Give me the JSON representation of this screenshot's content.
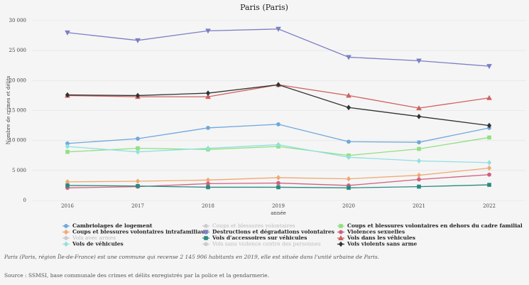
{
  "chart_data": {
    "type": "line",
    "title": "Paris (Paris)",
    "x_label": "année",
    "y_label": "Nombre de crimes et délits",
    "categories": [
      "2016",
      "2017",
      "2018",
      "2019",
      "2020",
      "2021",
      "2022"
    ],
    "ylim": [
      0,
      30000
    ],
    "yticks": [
      0,
      {
        "value": 5000,
        "label": "5 000"
      },
      {
        "value": 10000,
        "label": "10 000"
      },
      {
        "value": 15000,
        "label": "15 000"
      },
      {
        "value": 20000,
        "label": "20 000"
      },
      {
        "value": 25000,
        "label": "25 000"
      },
      {
        "value": 30000,
        "label": "30 000"
      }
    ],
    "grid": true,
    "series": [
      {
        "name": "Cambriolages de logement",
        "color": "#6fa8dc",
        "marker": "circle",
        "visible": true,
        "values": [
          9500,
          10300,
          12100,
          12700,
          9800,
          9700,
          12100
        ]
      },
      {
        "name": "Coups et blessures volontaires",
        "color": "#c8c8c8",
        "marker": "circle",
        "visible": false,
        "values": [
          null,
          null,
          null,
          null,
          null,
          null,
          null
        ]
      },
      {
        "name": "Coups et blessures volontaires en dehors du cadre familial",
        "color": "#90e080",
        "marker": "square",
        "visible": true,
        "values": [
          8100,
          8700,
          8500,
          9000,
          7500,
          8600,
          10500
        ]
      },
      {
        "name": "Coups et blessures volontaires intrafamiliaux",
        "color": "#f0a870",
        "marker": "plus",
        "visible": true,
        "values": [
          3100,
          3200,
          3400,
          3800,
          3600,
          4200,
          5400
        ]
      },
      {
        "name": "Destructions et dégradations volontaires",
        "color": "#7b7fc4",
        "marker": "down",
        "visible": true,
        "values": [
          28000,
          26700,
          28300,
          28600,
          23900,
          23300,
          22400
        ]
      },
      {
        "name": "Violences sexuelles",
        "color": "#d06080",
        "marker": "circle",
        "visible": true,
        "values": [
          2100,
          2300,
          2800,
          2900,
          2500,
          3500,
          4300
        ]
      },
      {
        "name": "Vols avec armes",
        "color": "#c8c8c8",
        "marker": "circle",
        "visible": false,
        "values": [
          null,
          null,
          null,
          null,
          null,
          null,
          null
        ]
      },
      {
        "name": "Vols d'accessoires sur véhicules",
        "color": "#2a8a80",
        "marker": "square",
        "visible": true,
        "values": [
          2500,
          2400,
          2200,
          2200,
          2100,
          2300,
          2600
        ]
      },
      {
        "name": "Vols dans les véhicules",
        "color": "#d0605e",
        "marker": "up",
        "visible": true,
        "values": [
          17500,
          17300,
          17300,
          19300,
          17500,
          15400,
          17100
        ]
      },
      {
        "name": "Vols de véhicules",
        "color": "#90e0e0",
        "marker": "plus",
        "visible": true,
        "values": [
          9000,
          8100,
          8700,
          9300,
          7200,
          6600,
          6300
        ]
      },
      {
        "name": "Vols sans violence contre des personnes",
        "color": "#c8c8c8",
        "marker": "circle",
        "visible": false,
        "values": [
          null,
          null,
          null,
          null,
          null,
          null,
          null
        ]
      },
      {
        "name": "Vols violents sans arme",
        "color": "#333333",
        "marker": "plus",
        "visible": true,
        "values": [
          17600,
          17500,
          17900,
          19300,
          15500,
          14000,
          12500
        ]
      }
    ],
    "notes": [
      "Paris (Paris, région Île-de-France) est une commune qui recense 2 145 906 habitants en 2019, elle est située dans l'unité urbaine de Paris.",
      "Source : SSMSI, base communale des crimes et délits enregistrés par la police et la gendarmerie."
    ]
  }
}
